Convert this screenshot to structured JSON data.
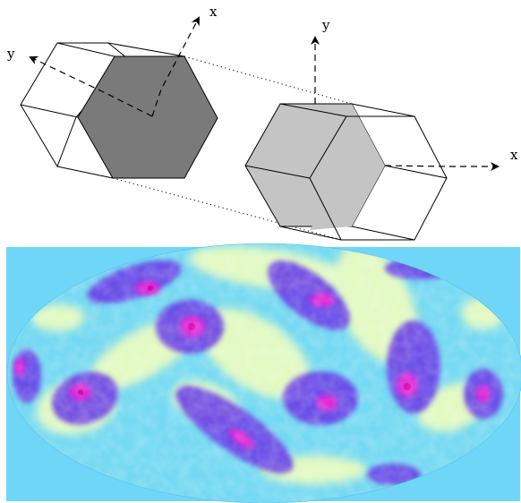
{
  "diagram": {
    "left_prism_axes": {
      "x_label": "x",
      "y_label": "y"
    },
    "right_prism_axes": {
      "x_label": "x",
      "y_label": "y"
    }
  },
  "sky_map": {
    "colors": {
      "background": "#6fd6f8",
      "ellipse_base": "#74d9f2",
      "warm": "#e8fbbf",
      "cool": "#6a3fe6",
      "hot": "#e025d8",
      "hottest": "#d400a8"
    }
  }
}
